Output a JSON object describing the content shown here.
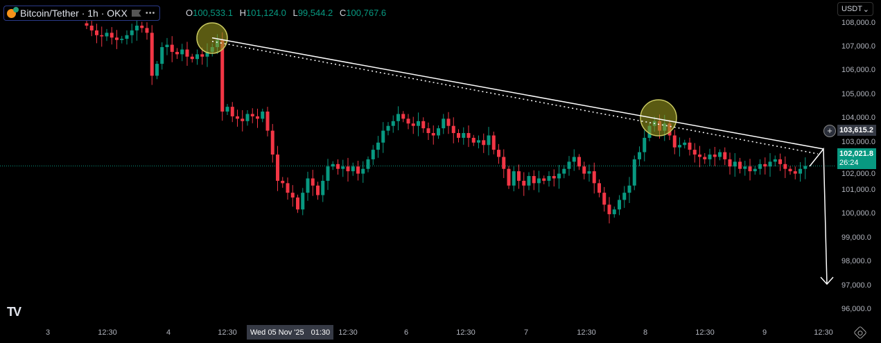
{
  "header": {
    "symbol": "Bitcoin/Tether · 1h · OKX",
    "more": "•••",
    "ohlc": {
      "o_label": "O",
      "o": "100,533.1",
      "h_label": "H",
      "h": "101,124.0",
      "l_label": "L",
      "l": "99,544.2",
      "c_label": "C",
      "c": "100,767.6"
    }
  },
  "currency_select": "USDT",
  "crosshair": {
    "price": "103,615.2",
    "time_date": "Wed 05 Nov '25",
    "time_hour": "01:30"
  },
  "current": {
    "price": "102,021.8",
    "countdown": "26:24"
  },
  "colors": {
    "up": "#089981",
    "down": "#F23645",
    "background": "#000000",
    "drawing": "#ffffff",
    "highlight": "#8a8a1e"
  },
  "chart_data": {
    "type": "candlestick",
    "interval": "1h",
    "ylim": [
      95700,
      108200
    ],
    "yticks": [
      108000,
      107000,
      106000,
      105000,
      104000,
      103000,
      102000,
      101000,
      100000,
      99000,
      98000,
      97000,
      96000
    ],
    "ytick_labels": [
      "108,000.0",
      "107,000.0",
      "106,000.0",
      "105,000.0",
      "104,000.0",
      "103,000.0",
      "102,000.0",
      "101,000.0",
      "100,000.0",
      "99,000.0",
      "98,000.0",
      "97,000.0",
      "96,000.0"
    ],
    "xtick_labels": [
      "3",
      "12:30",
      "4",
      "12:30",
      "12:30",
      "6",
      "12:30",
      "7",
      "12:30",
      "8",
      "12:30",
      "9",
      "12:30"
    ],
    "grid": false,
    "closes": [
      107900,
      107700,
      107500,
      107450,
      107600,
      107400,
      107300,
      107350,
      107500,
      107700,
      107900,
      107800,
      107600,
      105800,
      106300,
      107000,
      107100,
      106800,
      106700,
      106900,
      106600,
      106500,
      106700,
      106600,
      106800,
      107000,
      107300,
      104300,
      104500,
      104100,
      104000,
      103900,
      104200,
      104100,
      104000,
      104300,
      103500,
      102500,
      101400,
      101300,
      100900,
      100700,
      100200,
      100900,
      101500,
      101200,
      100800,
      101400,
      102000,
      102100,
      101900,
      102000,
      101800,
      102000,
      101700,
      101900,
      102300,
      102700,
      103000,
      103500,
      103700,
      103900,
      104200,
      104000,
      103800,
      103700,
      103900,
      103600,
      103400,
      103300,
      103600,
      104000,
      103700,
      103400,
      103200,
      103400,
      103200,
      103000,
      103100,
      102900,
      103300,
      102700,
      102400,
      101900,
      101200,
      101800,
      101400,
      101200,
      101600,
      101300,
      101500,
      101400,
      101600,
      101500,
      101700,
      101900,
      102200,
      102400,
      102000,
      101700,
      101800,
      101300,
      100900,
      100400,
      100000,
      100200,
      100600,
      100900,
      101200,
      102300,
      102600,
      103200,
      103700,
      103900,
      103500,
      103800,
      103300,
      102800,
      102900,
      103000,
      102700,
      102500,
      102400,
      102300,
      102500,
      102400,
      102600,
      102300,
      102000,
      102200,
      101900,
      102000,
      101800,
      101900,
      102100,
      102000,
      102200,
      102300,
      102100,
      101900,
      101800,
      101700,
      101900,
      102021.8
    ],
    "annotations": {
      "trendline": [
        107300,
        102750
      ],
      "arrow_target": 97000
    }
  }
}
